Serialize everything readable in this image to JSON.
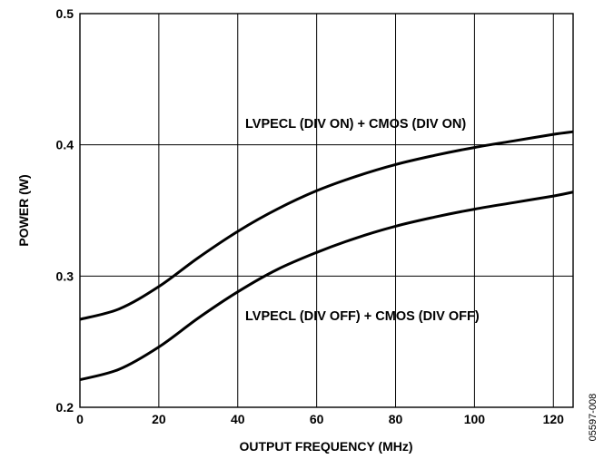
{
  "chart_data": {
    "type": "line",
    "xlabel": "OUTPUT FREQUENCY (MHz)",
    "ylabel": "POWER (W)",
    "xlim": [
      0,
      125
    ],
    "ylim": [
      0.2,
      0.5
    ],
    "x_ticks": [
      0,
      20,
      40,
      60,
      80,
      100,
      120
    ],
    "x_tick_labels": [
      "0",
      "20",
      "40",
      "60",
      "80",
      "100",
      "120"
    ],
    "y_ticks": [
      0.2,
      0.3,
      0.4,
      0.5
    ],
    "y_tick_labels": [
      "0.2",
      "0.3",
      "0.4",
      "0.5"
    ],
    "grid": true,
    "series": [
      {
        "name": "LVPECL (DIV ON) + CMOS (DIV ON)",
        "x": [
          0,
          10,
          20,
          30,
          40,
          50,
          60,
          70,
          80,
          90,
          100,
          110,
          120,
          125
        ],
        "values": [
          0.267,
          0.275,
          0.292,
          0.314,
          0.334,
          0.351,
          0.365,
          0.376,
          0.385,
          0.392,
          0.398,
          0.403,
          0.408,
          0.41
        ]
      },
      {
        "name": "LVPECL (DIV OFF) + CMOS (DIV OFF)",
        "x": [
          0,
          10,
          20,
          30,
          40,
          50,
          60,
          70,
          80,
          90,
          100,
          110,
          120,
          125
        ],
        "values": [
          0.221,
          0.229,
          0.246,
          0.268,
          0.288,
          0.305,
          0.318,
          0.329,
          0.338,
          0.345,
          0.351,
          0.356,
          0.361,
          0.364
        ]
      }
    ],
    "annotations": [
      "LVPECL (DIV ON) + CMOS (DIV ON)",
      "LVPECL (DIV OFF) + CMOS (DIV OFF)"
    ],
    "figure_id": "05597-008"
  }
}
